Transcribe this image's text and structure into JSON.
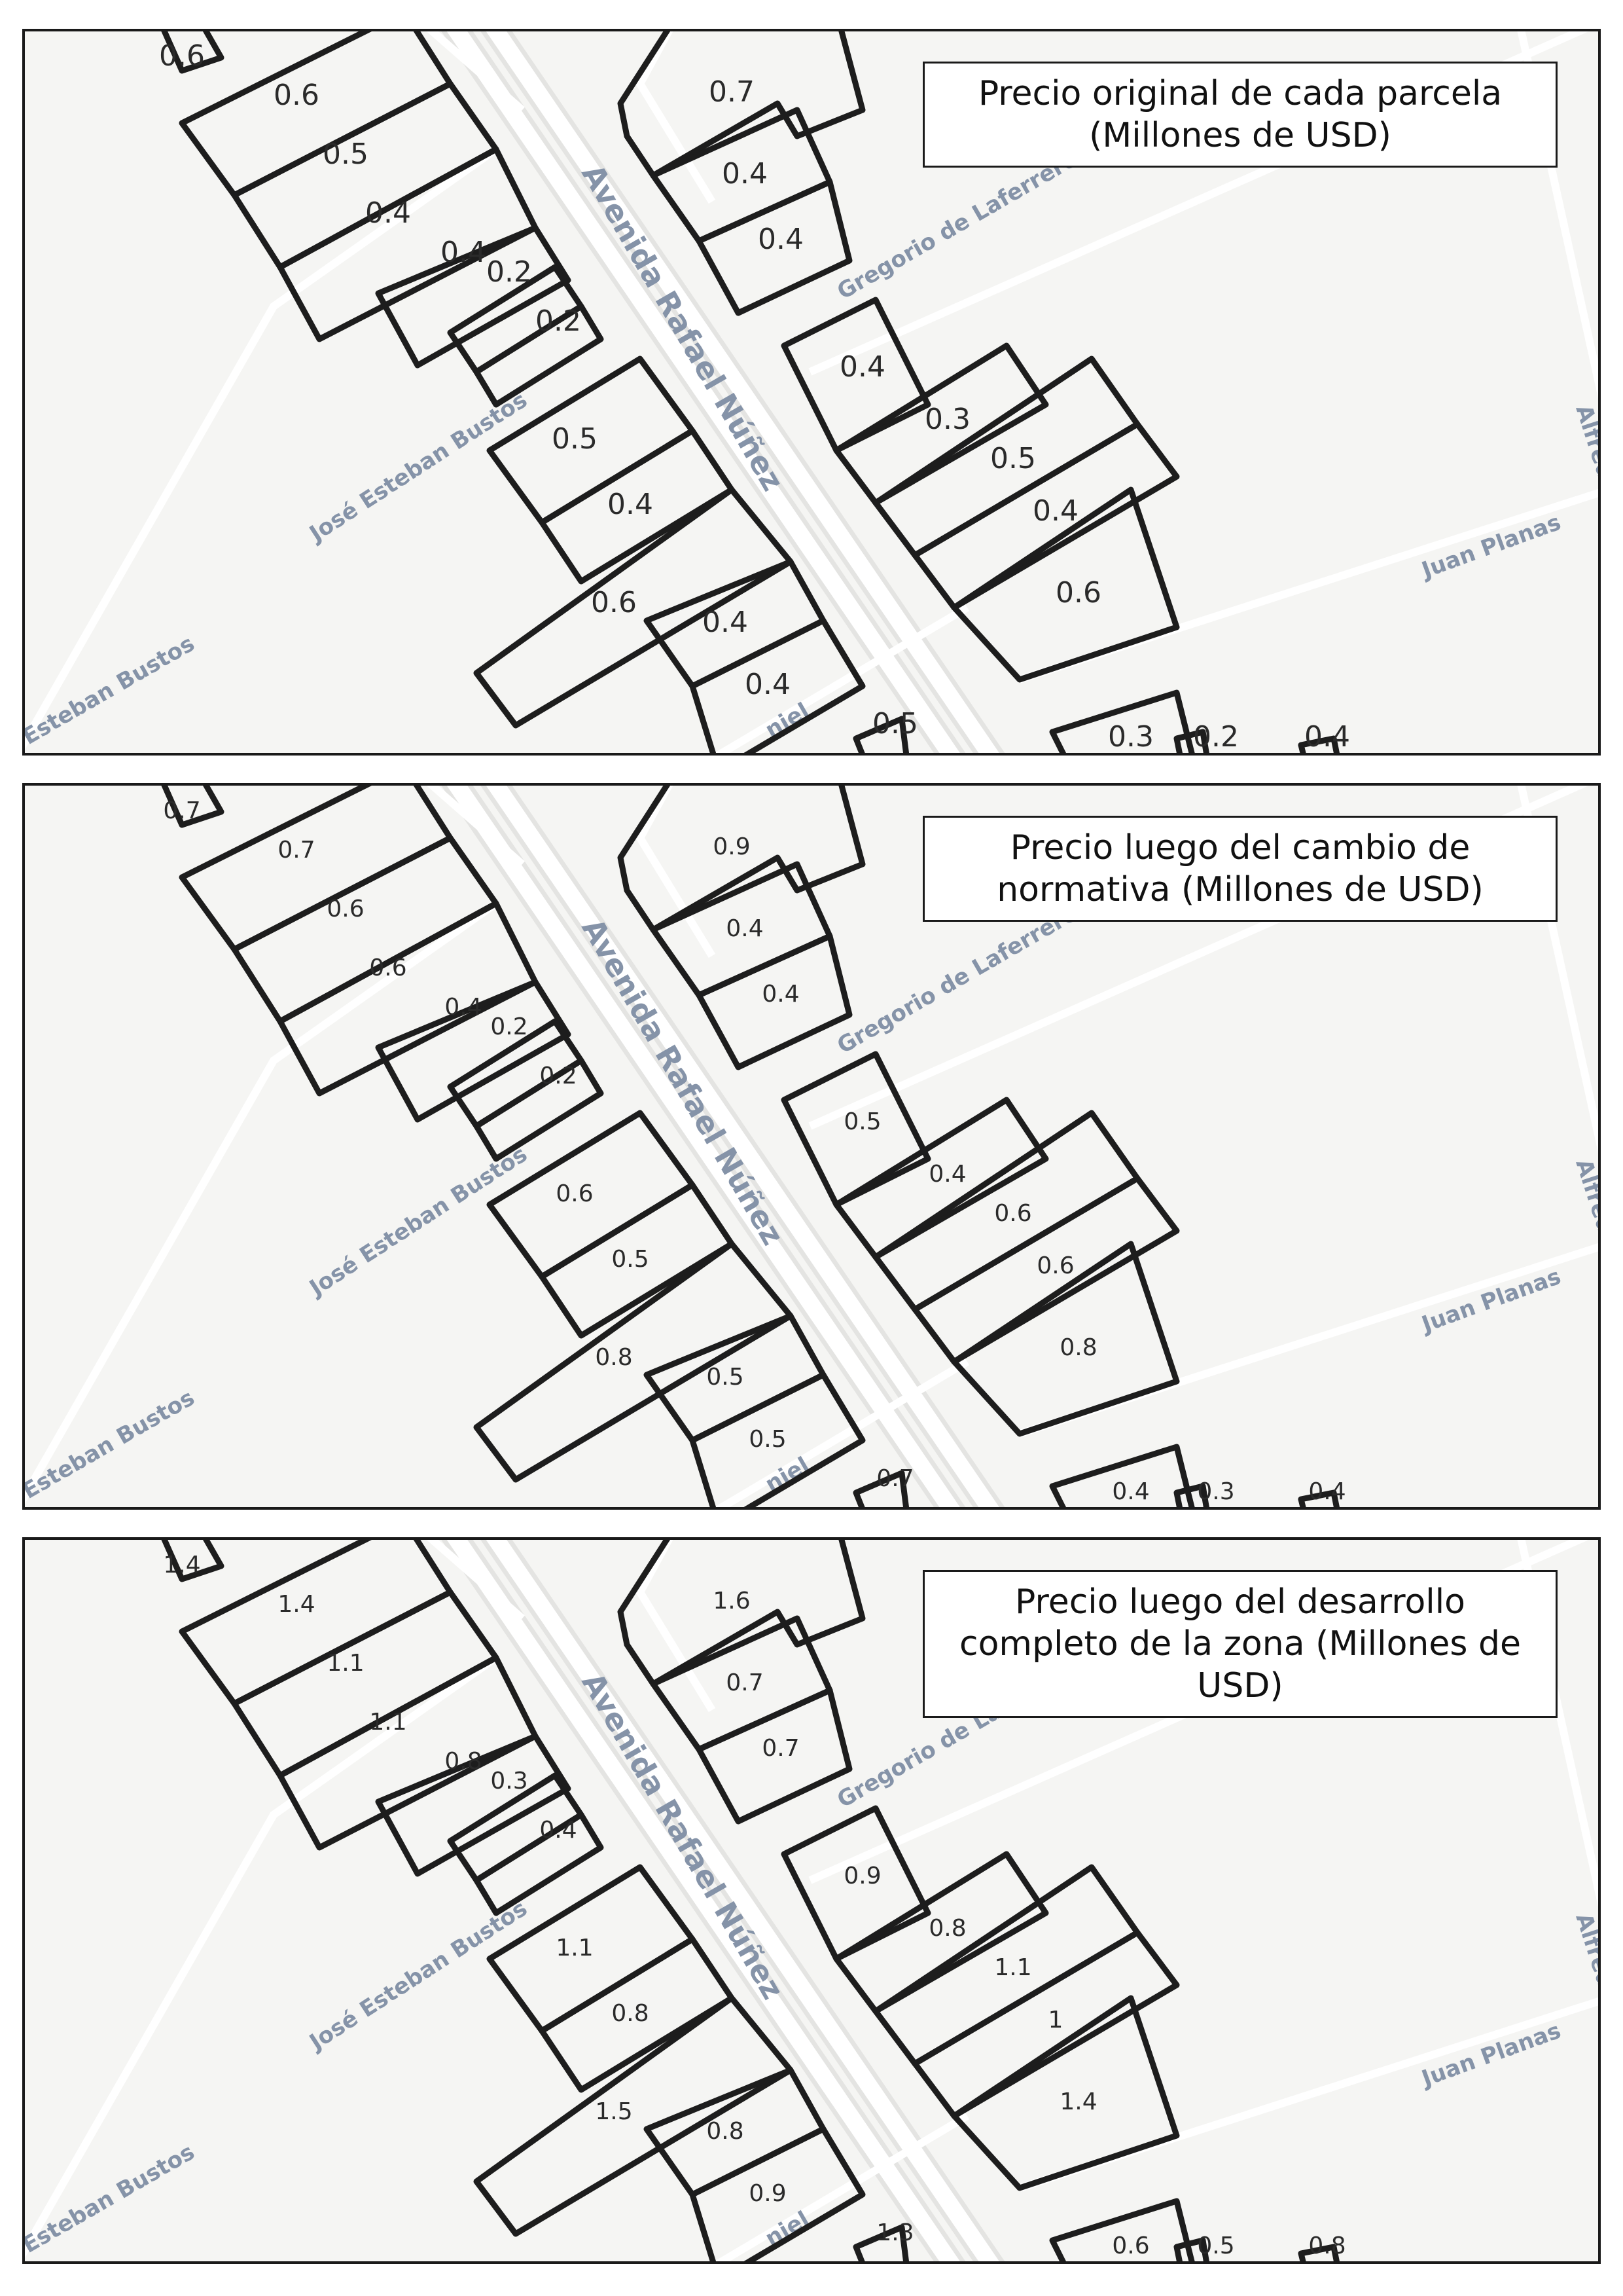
{
  "streets": {
    "rafael_nunez": "Avenida Rafael Núñez",
    "laferrere": "Gregorio de Laferrere",
    "jose_bustos": "José Esteban Bustos",
    "bustos_partial": "Esteban Bustos",
    "juan_planas": "Juan Planas",
    "alfredo_partial": "Alfred",
    "daniel_partial": "niel"
  },
  "panels": [
    {
      "title": "Precio original de cada parcela (Millones de USD)",
      "prices": [
        "0.6",
        "0.6",
        "0.5",
        "0.4",
        "0.4",
        "0.2",
        "0.2",
        "0.7",
        "0.4",
        "0.4",
        "0.4",
        "0.3",
        "0.5",
        "0.4",
        "0.6",
        "0.5",
        "0.4",
        "0.6",
        "0.4",
        "0.4",
        "0.5",
        "0.3",
        "0.2",
        "0.4"
      ]
    },
    {
      "title": "Precio luego del cambio de normativa (Millones de USD)",
      "prices": [
        "0.7",
        "0.7",
        "0.6",
        "0.6",
        "0.4",
        "0.2",
        "0.2",
        "0.9",
        "0.4",
        "0.4",
        "0.5",
        "0.4",
        "0.6",
        "0.6",
        "0.8",
        "0.6",
        "0.5",
        "0.8",
        "0.5",
        "0.5",
        "0.7",
        "0.4",
        "0.3",
        "0.4"
      ]
    },
    {
      "title": "Precio luego del desarrollo completo de la zona (Millones de USD)",
      "prices": [
        "1.4",
        "1.4",
        "1.1",
        "1.1",
        "0.8",
        "0.3",
        "0.4",
        "1.6",
        "0.7",
        "0.7",
        "0.9",
        "0.8",
        "1.1",
        "1",
        "1.4",
        "1.1",
        "0.8",
        "1.5",
        "0.8",
        "0.9",
        "1.3",
        "0.6",
        "0.5",
        "0.8"
      ]
    }
  ]
}
